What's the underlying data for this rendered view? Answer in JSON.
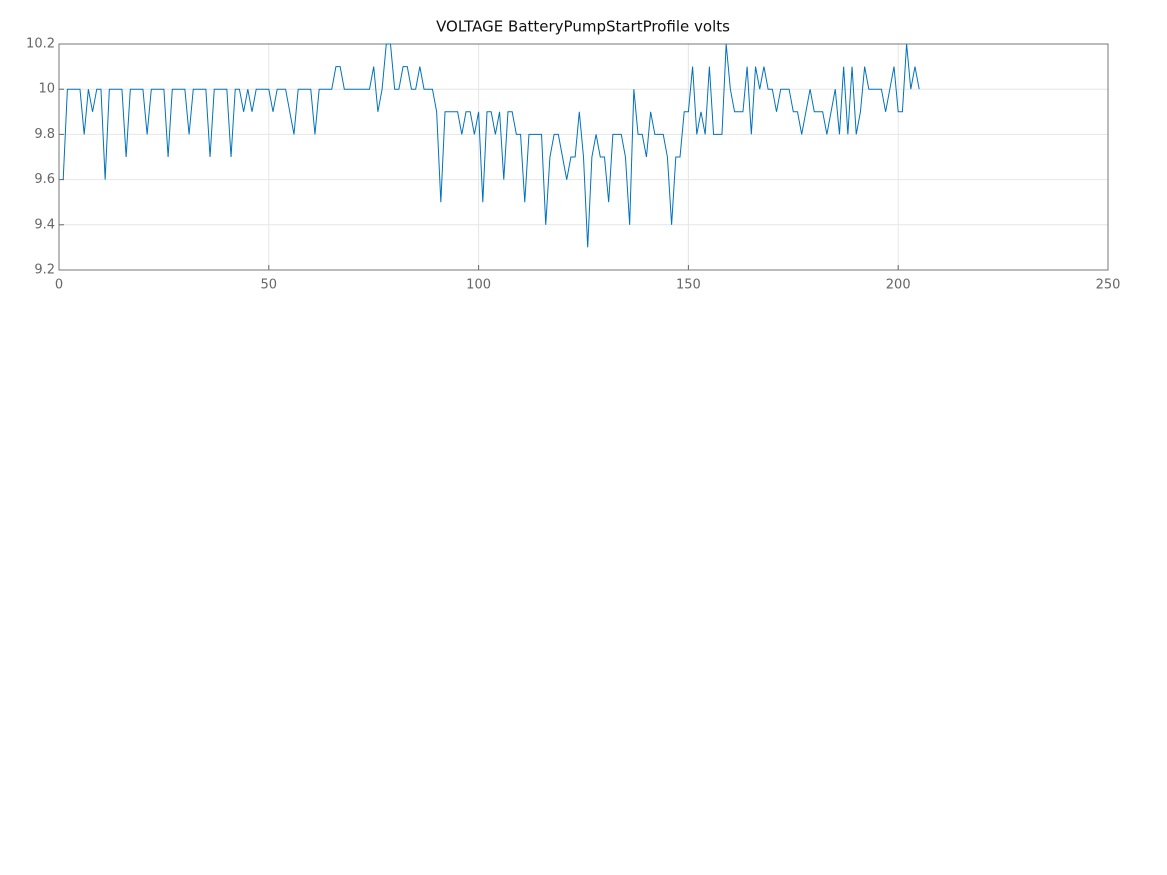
{
  "chart_data": {
    "type": "line",
    "title": "VOLTAGE BatteryPumpStartProfile volts",
    "x": [
      1,
      2,
      3,
      4,
      5,
      6,
      7,
      8,
      9,
      10,
      11,
      12,
      13,
      14,
      15,
      16,
      17,
      18,
      19,
      20,
      21,
      22,
      23,
      24,
      25,
      26,
      27,
      28,
      29,
      30,
      31,
      32,
      33,
      34,
      35,
      36,
      37,
      38,
      39,
      40,
      41,
      42,
      43,
      44,
      45,
      46,
      47,
      48,
      49,
      50,
      51,
      52,
      53,
      54,
      55,
      56,
      57,
      58,
      59,
      60,
      61,
      62,
      63,
      64,
      65,
      66,
      67,
      68,
      69,
      70,
      71,
      72,
      73,
      74,
      75,
      76,
      77,
      78,
      79,
      80,
      81,
      82,
      83,
      84,
      85,
      86,
      87,
      88,
      89,
      90,
      91,
      92,
      93,
      94,
      95,
      96,
      97,
      98,
      99,
      100,
      101,
      102,
      103,
      104,
      105,
      106,
      107,
      108,
      109,
      110,
      111,
      112,
      113,
      114,
      115,
      116,
      117,
      118,
      119,
      120,
      121,
      122,
      123,
      124,
      125,
      126,
      127,
      128,
      129,
      130,
      131,
      132,
      133,
      134,
      135,
      136,
      137,
      138,
      139,
      140,
      141,
      142,
      143,
      144,
      145,
      146,
      147,
      148,
      149,
      150,
      151,
      152,
      153,
      154,
      155,
      156,
      157,
      158,
      159,
      160,
      161,
      162,
      163,
      164,
      165,
      166,
      167,
      168,
      169,
      170,
      171,
      172,
      173,
      174,
      175,
      176,
      177,
      178,
      179,
      180,
      181,
      182,
      183,
      184,
      185,
      186,
      187,
      188,
      189,
      190,
      191,
      192,
      193,
      194,
      195,
      196,
      197,
      198,
      199,
      200,
      201,
      202,
      203,
      204,
      205
    ],
    "series": [
      {
        "color": "#0072bd",
        "values": [
          9.6,
          10,
          10,
          10,
          10,
          9.8,
          10,
          9.9,
          10,
          10,
          9.6,
          10,
          10,
          10,
          10,
          9.7,
          10,
          10,
          10,
          10,
          9.8,
          10,
          10,
          10,
          10,
          9.7,
          10,
          10,
          10,
          10,
          9.8,
          10,
          10,
          10,
          10,
          9.7,
          10,
          10,
          10,
          10,
          9.7,
          10,
          10,
          9.9,
          10,
          9.9,
          10,
          10,
          10,
          10,
          9.9,
          10,
          10,
          10,
          9.9,
          9.8,
          10,
          10,
          10,
          10,
          9.8,
          10,
          10,
          10,
          10,
          10.1,
          10.1,
          10,
          10,
          10,
          10,
          10,
          10,
          10,
          10.1,
          9.9,
          10,
          10.2,
          10.2,
          10,
          10,
          10.1,
          10.1,
          10,
          10,
          10.1,
          10,
          10,
          10,
          9.9,
          9.5,
          9.9,
          9.9,
          9.9,
          9.9,
          9.8,
          9.9,
          9.9,
          9.8,
          9.9,
          9.5,
          9.9,
          9.9,
          9.8,
          9.9,
          9.6,
          9.9,
          9.9,
          9.8,
          9.8,
          9.5,
          9.8,
          9.8,
          9.8,
          9.8,
          9.4,
          9.7,
          9.8,
          9.8,
          9.7,
          9.6,
          9.7,
          9.7,
          9.9,
          9.7,
          9.3,
          9.7,
          9.8,
          9.7,
          9.7,
          9.5,
          9.8,
          9.8,
          9.8,
          9.7,
          9.4,
          10,
          9.8,
          9.8,
          9.7,
          9.9,
          9.8,
          9.8,
          9.8,
          9.7,
          9.4,
          9.7,
          9.7,
          9.9,
          9.9,
          10.1,
          9.8,
          9.9,
          9.8,
          10.1,
          9.8,
          9.8,
          9.8,
          10.2,
          10,
          9.9,
          9.9,
          9.9,
          10.1,
          9.8,
          10.1,
          10,
          10.1,
          10,
          10,
          9.9,
          10,
          10,
          10,
          9.9,
          9.9,
          9.8,
          9.9,
          10,
          9.9,
          9.9,
          9.9,
          9.8,
          9.9,
          10,
          9.8,
          10.1,
          9.8,
          10.1,
          9.8,
          9.9,
          10.1,
          10,
          10,
          10,
          10,
          9.9,
          10,
          10.1,
          9.9,
          9.9,
          10.2,
          10,
          10.1,
          10
        ]
      }
    ],
    "xlim": [
      0,
      250
    ],
    "xticks": [
      0,
      50,
      100,
      150,
      200,
      250
    ],
    "ylim": [
      9.2,
      10.2
    ],
    "yticks": [
      9.2,
      9.4,
      9.6,
      9.8,
      10,
      10.2
    ],
    "grid": true
  }
}
